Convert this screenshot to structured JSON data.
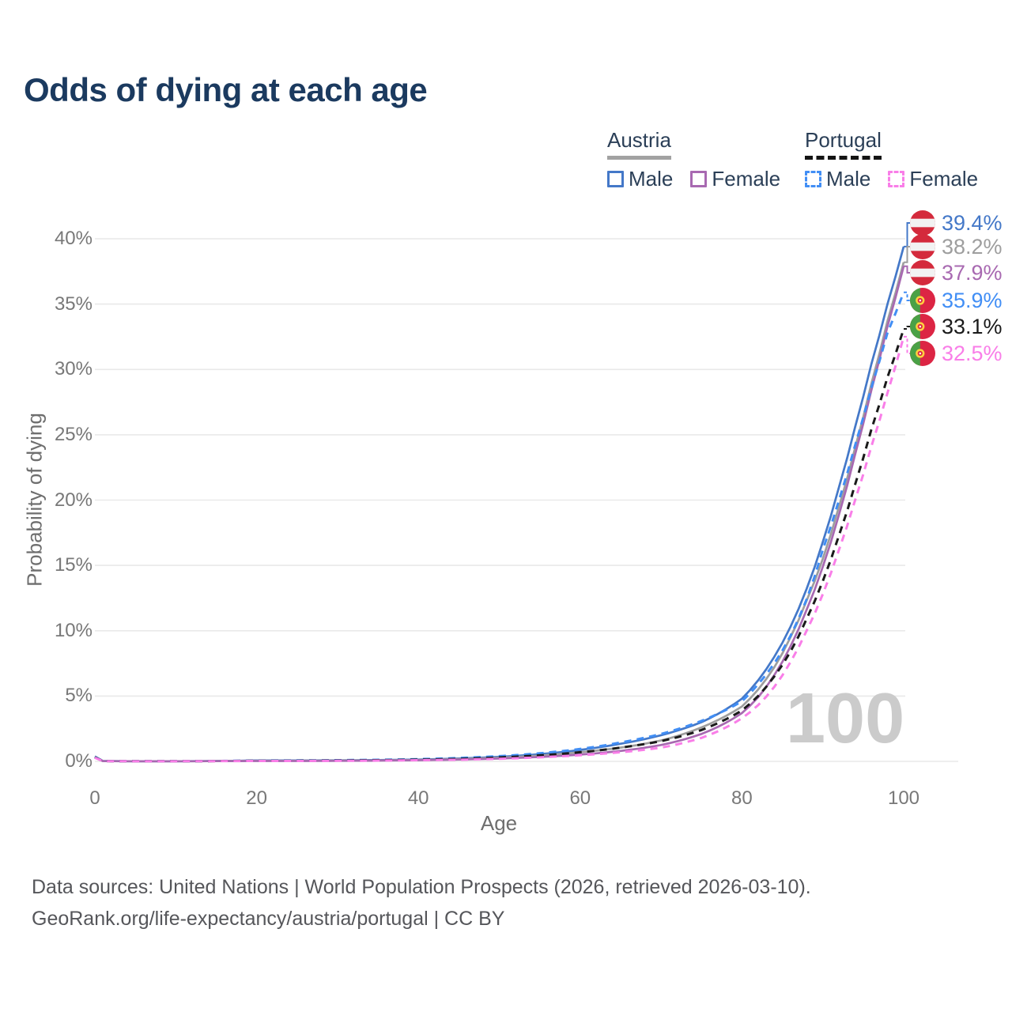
{
  "title": "Odds of dying at each age",
  "legend": {
    "groups": [
      {
        "country": "Austria",
        "underline": "solid",
        "items": [
          {
            "label": "Male",
            "color": "#4478c8"
          },
          {
            "label": "Female",
            "color": "#a869b1"
          }
        ]
      },
      {
        "country": "Portugal",
        "underline": "dashed",
        "items": [
          {
            "label": "Male",
            "color": "#418ef5"
          },
          {
            "label": "Female",
            "color": "#f97ee8"
          }
        ]
      }
    ]
  },
  "colors": {
    "title": "#1b3a5f",
    "axis_text": "#787878",
    "grid": "#e9e9e9",
    "watermark": "#cbcbcb",
    "austria_male": "#4478c8",
    "austria_both": "#9e9e9e",
    "austria_female": "#a869b1",
    "portugal_male": "#418ef5",
    "portugal_both": "#1a1a1a",
    "portugal_female": "#f97ee8",
    "austria_flag_red": "#d42a3c",
    "austria_flag_white": "#f2f2f2",
    "portugal_flag_green": "#4aa146",
    "portugal_flag_red": "#dc2544",
    "portugal_flag_yellow": "#ffd23f"
  },
  "chart_data": {
    "type": "line",
    "title": "Odds of dying at each age",
    "xlabel": "Age",
    "ylabel": "Probability of dying",
    "xlim": [
      0,
      100
    ],
    "ylim_pct": [
      0,
      42
    ],
    "grid": "horizontal",
    "legend_position": "top-right",
    "x_ticks": [
      0,
      20,
      40,
      60,
      80,
      100
    ],
    "y_tick_values": [
      0,
      5,
      10,
      15,
      20,
      25,
      30,
      35,
      40
    ],
    "y_tick_labels": [
      "0%",
      "5%",
      "10%",
      "15%",
      "20%",
      "25%",
      "30%",
      "35%",
      "40%"
    ],
    "age_indicator": "100",
    "ages": [
      0,
      1,
      5,
      10,
      15,
      20,
      25,
      30,
      35,
      40,
      45,
      50,
      55,
      60,
      65,
      70,
      75,
      80,
      82,
      84,
      86,
      88,
      90,
      92,
      94,
      96,
      98,
      100
    ],
    "series": [
      {
        "name": "Austria Male",
        "country": "Austria",
        "sex": "Male",
        "line": "solid",
        "color": "#4478c8",
        "flag": "austria",
        "end_label": "39.4%",
        "values_pct": [
          0.38,
          0.03,
          0.01,
          0.01,
          0.03,
          0.07,
          0.07,
          0.08,
          0.1,
          0.14,
          0.22,
          0.35,
          0.55,
          0.88,
          1.35,
          2.0,
          3.0,
          4.8,
          6.2,
          8.0,
          10.3,
          13.2,
          16.8,
          21.0,
          25.6,
          30.4,
          35.0,
          39.4
        ]
      },
      {
        "name": "Austria",
        "country": "Austria",
        "sex": "Both",
        "line": "solid",
        "color": "#9e9e9e",
        "flag": "austria",
        "end_label": "38.2%",
        "values_pct": [
          0.35,
          0.025,
          0.01,
          0.01,
          0.025,
          0.05,
          0.05,
          0.06,
          0.08,
          0.11,
          0.18,
          0.28,
          0.44,
          0.7,
          1.05,
          1.6,
          2.6,
          4.2,
          5.5,
          7.2,
          9.5,
          12.3,
          15.5,
          19.5,
          24.0,
          28.9,
          33.7,
          38.2
        ]
      },
      {
        "name": "Austria Female",
        "country": "Austria",
        "sex": "Female",
        "line": "solid",
        "color": "#a869b1",
        "flag": "austria",
        "end_label": "37.9%",
        "values_pct": [
          0.32,
          0.02,
          0.008,
          0.008,
          0.02,
          0.03,
          0.03,
          0.04,
          0.06,
          0.09,
          0.14,
          0.22,
          0.34,
          0.52,
          0.8,
          1.25,
          2.1,
          3.7,
          4.9,
          6.6,
          8.8,
          11.6,
          14.9,
          18.9,
          23.5,
          28.4,
          33.3,
          37.9
        ]
      },
      {
        "name": "Portugal Male",
        "country": "Portugal",
        "sex": "Male",
        "line": "dashed",
        "color": "#418ef5",
        "flag": "portugal",
        "end_label": "35.9%",
        "values_pct": [
          0.32,
          0.03,
          0.01,
          0.01,
          0.03,
          0.06,
          0.07,
          0.09,
          0.12,
          0.17,
          0.26,
          0.4,
          0.62,
          0.95,
          1.45,
          2.1,
          3.1,
          4.6,
          5.9,
          7.5,
          9.6,
          12.4,
          16.2,
          20.0,
          24.2,
          28.6,
          32.8,
          35.9
        ]
      },
      {
        "name": "Portugal",
        "country": "Portugal",
        "sex": "Both",
        "line": "dashed",
        "color": "#1a1a1a",
        "flag": "portugal",
        "end_label": "33.1%",
        "values_pct": [
          0.3,
          0.025,
          0.01,
          0.01,
          0.025,
          0.045,
          0.05,
          0.065,
          0.09,
          0.13,
          0.19,
          0.3,
          0.46,
          0.7,
          1.05,
          1.55,
          2.4,
          3.9,
          5.0,
          6.5,
          8.4,
          10.9,
          13.8,
          17.3,
          21.2,
          25.4,
          29.4,
          33.1
        ]
      },
      {
        "name": "Portugal Female",
        "country": "Portugal",
        "sex": "Female",
        "line": "dashed",
        "color": "#f97ee8",
        "flag": "portugal",
        "end_label": "32.5%",
        "values_pct": [
          0.28,
          0.02,
          0.008,
          0.008,
          0.02,
          0.03,
          0.03,
          0.04,
          0.06,
          0.09,
          0.13,
          0.2,
          0.31,
          0.47,
          0.7,
          1.05,
          1.8,
          3.3,
          4.3,
          5.7,
          7.6,
          10.0,
          12.8,
          16.2,
          20.0,
          24.1,
          28.2,
          32.5
        ]
      }
    ]
  },
  "footer": {
    "line1": "Data sources: United Nations | World Population Prospects (2026, retrieved 2026-03-10).",
    "line2": "GeoRank.org/life-expectancy/austria/portugal | CC BY"
  }
}
